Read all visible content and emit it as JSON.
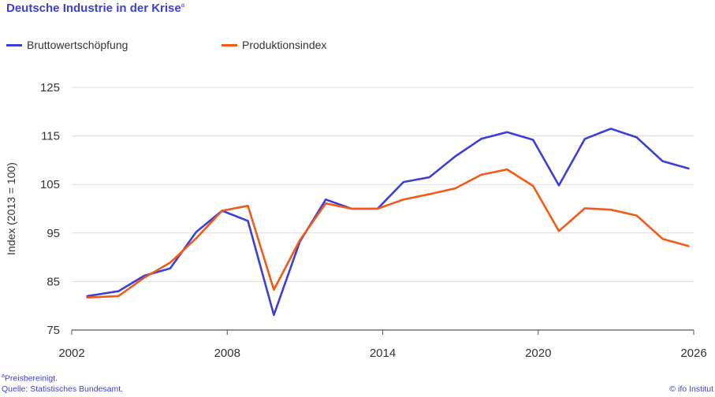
{
  "title": "Deutsche Industrie in der Krise",
  "title_footnote_marker": "a",
  "colors": {
    "accent": "#3b3fd8",
    "series1": "#3b3fd8",
    "series2": "#f25a16",
    "grid": "#dcdcdc",
    "text": "#333333"
  },
  "footnote": {
    "marker": "a",
    "text": "Preisbereinigt."
  },
  "source": "Quelle: Statistisches Bundesamt.",
  "credit": "© ifo Institut",
  "chart_data": {
    "type": "line",
    "title": "Deutsche Industrie in der Krise",
    "xlabel": "",
    "ylabel": "Index (2013 = 100)",
    "xlim": [
      2002,
      2026
    ],
    "ylim": [
      75,
      125
    ],
    "xticks": [
      2002,
      2008,
      2014,
      2020,
      2026
    ],
    "yticks": [
      75,
      85,
      95,
      105,
      115,
      125
    ],
    "grid": "horizontal",
    "legend": "top-left",
    "x": [
      2002.6,
      2003.8,
      2004.8,
      2005.8,
      2006.8,
      2007.8,
      2008.8,
      2009.8,
      2010.8,
      2011.8,
      2012.8,
      2013.8,
      2014.8,
      2015.8,
      2016.8,
      2017.8,
      2018.8,
      2019.8,
      2020.8,
      2021.8,
      2022.8,
      2023.8,
      2024.8,
      2025.8
    ],
    "series": [
      {
        "name": "Bruttowertschöpfung",
        "color": "#3b3fd8",
        "values": [
          82.0,
          83.0,
          86.2,
          87.7,
          95.2,
          99.6,
          97.5,
          78.1,
          93.2,
          101.9,
          100.0,
          100.0,
          105.5,
          106.5,
          110.8,
          114.4,
          115.8,
          114.2,
          104.8,
          114.4,
          116.5,
          114.7,
          109.8,
          108.3
        ]
      },
      {
        "name": "Produktionsindex",
        "color": "#f25a16",
        "values": [
          81.7,
          82.0,
          85.8,
          88.9,
          93.9,
          99.6,
          100.6,
          83.3,
          93.5,
          101.1,
          100.0,
          100.0,
          101.9,
          103.0,
          104.2,
          107.0,
          108.1,
          104.7,
          95.4,
          100.1,
          99.8,
          98.6,
          93.8,
          92.3
        ]
      }
    ]
  }
}
